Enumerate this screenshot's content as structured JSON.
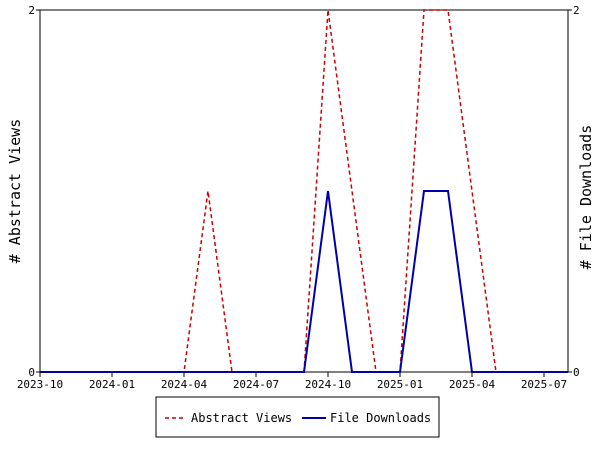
{
  "chart_data": {
    "type": "line",
    "x": [
      "2023-10",
      "2023-11",
      "2023-12",
      "2024-01",
      "2024-02",
      "2024-03",
      "2024-04",
      "2024-05",
      "2024-06",
      "2024-07",
      "2024-08",
      "2024-09",
      "2024-10",
      "2024-11",
      "2024-12",
      "2025-01",
      "2025-02",
      "2025-03",
      "2025-04",
      "2025-05",
      "2025-06",
      "2025-07",
      "2025-08"
    ],
    "x_ticks": [
      "2023-10",
      "2024-01",
      "2024-04",
      "2024-07",
      "2024-10",
      "2025-01",
      "2025-04",
      "2025-07"
    ],
    "series": [
      {
        "name": "Abstract Views",
        "axis": "left",
        "color": "#cc0000",
        "dash": "dashed",
        "values": [
          0,
          0,
          0,
          0,
          0,
          0,
          0,
          1,
          0,
          0,
          0,
          0,
          2,
          1,
          0,
          0,
          2,
          2,
          1,
          0,
          0,
          0,
          0
        ]
      },
      {
        "name": "File Downloads",
        "axis": "right",
        "color": "#0000aa",
        "dash": "solid",
        "values": [
          0,
          0,
          0,
          0,
          0,
          0,
          0,
          0,
          0,
          0,
          0,
          0,
          1,
          0,
          0,
          0,
          1,
          1,
          0,
          0,
          0,
          0,
          0
        ]
      }
    ],
    "ylabel_left": "# Abstract Views",
    "ylabel_right": "# File Downloads",
    "ylim_left": [
      0,
      2
    ],
    "ylim_right": [
      0,
      2
    ],
    "y_ticks_left": [
      "0",
      "2"
    ],
    "y_ticks_right": [
      "0",
      "2"
    ],
    "grid": false,
    "legend_position": "bottom"
  }
}
